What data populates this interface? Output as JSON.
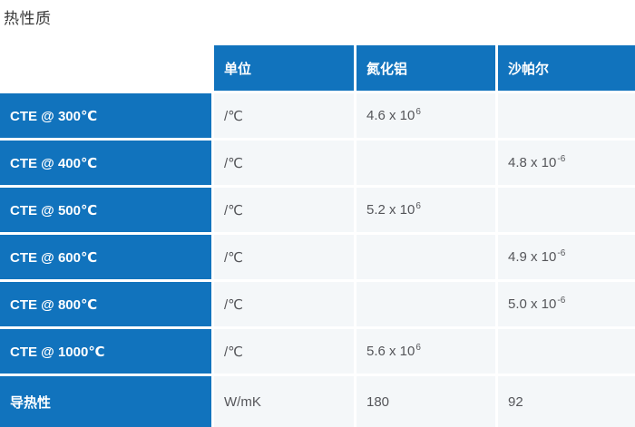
{
  "title": "热性质",
  "colors": {
    "accent_blue": "#1173bd",
    "cell_background": "#f4f7f9",
    "cell_text": "#55565a",
    "title_text": "#3b3b3b",
    "header_text": "#ffffff"
  },
  "table": {
    "column_headers": [
      "单位",
      "氮化铝",
      "沙帕尔"
    ],
    "rows": [
      {
        "label": "CTE @ 300℃",
        "unit": "/℃",
        "aln": {
          "base": "4.6 x 10",
          "sup": "6"
        },
        "shapal": ""
      },
      {
        "label": "CTE @ 400℃",
        "unit": "/℃",
        "aln": "",
        "shapal": {
          "base": "4.8 x 10",
          "sup": "-6"
        }
      },
      {
        "label": "CTE @ 500℃",
        "unit": "/℃",
        "aln": {
          "base": "5.2 x 10",
          "sup": "6"
        },
        "shapal": ""
      },
      {
        "label": "CTE @ 600℃",
        "unit": "/℃",
        "aln": "",
        "shapal": {
          "base": "4.9 x 10",
          "sup": "-6"
        }
      },
      {
        "label": "CTE @ 800℃",
        "unit": "/℃",
        "aln": "",
        "shapal": {
          "base": "5.0 x 10",
          "sup": "-6"
        }
      },
      {
        "label": "CTE @ 1000℃",
        "unit": "/℃",
        "aln": {
          "base": "5.6 x 10",
          "sup": "6"
        },
        "shapal": ""
      },
      {
        "label": "导热性",
        "unit": "W/mK",
        "aln": "180",
        "shapal": "92"
      }
    ]
  }
}
